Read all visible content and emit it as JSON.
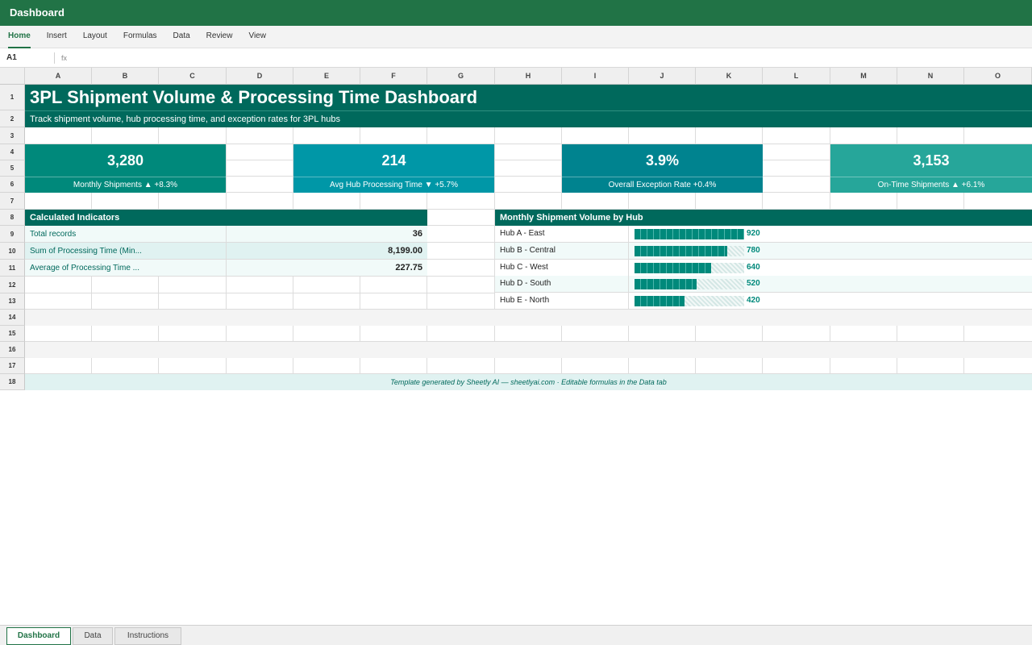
{
  "app": {
    "title": "Dashboard"
  },
  "ribbon": {
    "tabs": [
      "Home",
      "Insert",
      "Layout",
      "Formulas",
      "Data",
      "Review",
      "View"
    ],
    "active": "Home"
  },
  "formula_bar": {
    "cell_ref": "A1",
    "fx_label": "fx",
    "value": ""
  },
  "columns": [
    "A",
    "B",
    "C",
    "D",
    "E",
    "F",
    "G",
    "H",
    "I",
    "J",
    "K",
    "L",
    "M",
    "N",
    "O"
  ],
  "rows": [
    "1",
    "2",
    "3",
    "4",
    "5",
    "6",
    "7",
    "8",
    "9",
    "10",
    "11",
    "12",
    "13",
    "14",
    "15",
    "16",
    "17",
    "18"
  ],
  "dashboard": {
    "title": "3PL Shipment Volume & Processing Time Dashboard",
    "subtitle": "Track shipment volume, hub processing time, and exception rates for 3PL hubs",
    "kpis": [
      {
        "value": "3,280",
        "label": "Monthly Shipments ▲ +8.3%",
        "color": "#00897b"
      },
      {
        "value": "214",
        "label": "Avg Hub Processing Time ▼ +5.7%",
        "color": "#0097a7"
      },
      {
        "value": "3.9%",
        "label": "Overall Exception Rate +0.4%",
        "color": "#00838f"
      },
      {
        "value": "3,153",
        "label": "On-Time Shipments ▲ +6.1%",
        "color": "#26a69a"
      }
    ],
    "calc": {
      "header": "Calculated Indicators",
      "items": [
        {
          "label": "Total records",
          "value": "36"
        },
        {
          "label": "Sum of Processing Time (Min...",
          "value": "8,199.00"
        },
        {
          "label": "Average of Processing Time ...",
          "value": "227.75"
        }
      ]
    },
    "hub_chart": {
      "header": "Monthly Shipment Volume by Hub",
      "max": 920,
      "items": [
        {
          "name": "Hub A - East",
          "value": 920,
          "display": "920"
        },
        {
          "name": "Hub B - Central",
          "value": 780,
          "display": "780"
        },
        {
          "name": "Hub C - West",
          "value": 640,
          "display": "640"
        },
        {
          "name": "Hub D - South",
          "value": 520,
          "display": "520"
        },
        {
          "name": "Hub E - North",
          "value": 420,
          "display": "420"
        }
      ]
    },
    "footer": "Template generated by Sheetly AI — sheetlyai.com · Editable formulas in the Data tab"
  },
  "sheets": {
    "tabs": [
      "Dashboard",
      "Data",
      "Instructions"
    ],
    "active": "Dashboard"
  },
  "colors": {
    "brand": "#217346",
    "header": "#00695c",
    "bar": "#00897b"
  }
}
